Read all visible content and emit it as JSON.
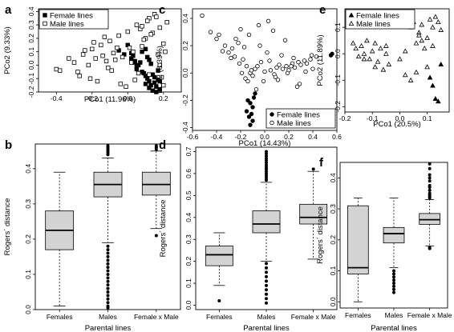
{
  "chart_data": [
    {
      "panel": "a",
      "type": "scatter",
      "xlabel": "PCo1 (11.96%)",
      "ylabel": "PCo2 (9.33%)",
      "xlim": [
        -0.5,
        0.3
      ],
      "ylim": [
        -0.2,
        0.42
      ],
      "xticks": [
        -0.4,
        -0.2,
        0.0,
        0.2
      ],
      "yticks": [
        -0.2,
        -0.1,
        0.0,
        0.1,
        0.2,
        0.3,
        0.4
      ],
      "xtick_labels": [
        "-0.4",
        "-0.2",
        "0.0",
        "0.2"
      ],
      "ytick_labels": [
        "-0.2",
        "-0.1",
        "0.0",
        "0.1",
        "0.2",
        "0.3",
        "0.4"
      ],
      "legend_position": "top-left",
      "series": [
        {
          "name": "Female lines",
          "marker": "filled-square",
          "x": [
            0.02,
            0.04,
            0.05,
            0.07,
            0.08,
            0.1,
            0.11,
            0.12,
            0.13,
            0.15,
            0.16,
            0.17,
            0.18,
            0.12,
            0.14,
            0.1,
            0.09,
            0.06,
            0.03,
            0.15,
            0.17,
            0.13,
            0.11,
            0.08,
            0.05,
            0.16,
            0.14,
            0.12,
            0.18,
            0.1,
            -0.02,
            -0.05,
            0.0,
            0.02,
            0.04
          ],
          "y": [
            0.05,
            0.03,
            -0.01,
            0.02,
            -0.05,
            -0.08,
            -0.1,
            -0.12,
            -0.15,
            -0.13,
            -0.16,
            -0.11,
            -0.18,
            -0.17,
            -0.19,
            -0.14,
            -0.06,
            0.0,
            0.07,
            -0.09,
            -0.04,
            0.01,
            0.06,
            0.1,
            -0.03,
            -0.2,
            -0.07,
            0.04,
            -0.12,
            0.12,
            0.08,
            0.11,
            0.15,
            0.09,
            0.02
          ]
        },
        {
          "name": "Male lines",
          "marker": "open-square",
          "x": [
            -0.4,
            -0.38,
            -0.3,
            -0.28,
            -0.25,
            -0.22,
            -0.2,
            -0.18,
            -0.15,
            -0.12,
            -0.1,
            -0.08,
            -0.05,
            -0.03,
            0.0,
            0.03,
            0.05,
            0.08,
            0.1,
            0.12,
            0.15,
            0.18,
            0.2,
            0.22,
            -0.27,
            -0.24,
            -0.21,
            -0.17,
            -0.14,
            -0.11,
            -0.07,
            -0.04,
            0.01,
            0.06,
            0.09,
            0.14,
            0.17,
            0.19,
            -0.33,
            -0.19,
            -0.13,
            -0.09,
            -0.06,
            0.02,
            0.07,
            0.11,
            0.16,
            0.21,
            0.04,
            -0.01,
            0.13,
            0.18,
            0.2,
            0.12,
            0.08
          ],
          "y": [
            -0.03,
            -0.04,
            0.02,
            -0.05,
            0.08,
            0.0,
            0.12,
            0.05,
            0.15,
            0.03,
            0.18,
            0.09,
            0.22,
            0.06,
            0.25,
            0.1,
            0.3,
            0.14,
            0.2,
            0.35,
            0.38,
            0.28,
            0.16,
            0.32,
            -0.08,
            0.11,
            -0.1,
            -0.12,
            0.07,
            -0.02,
            0.04,
            -0.14,
            0.13,
            -0.06,
            0.19,
            0.24,
            0.08,
            -0.09,
            0.05,
            0.17,
            0.21,
            -0.04,
            0.13,
            0.02,
            0.27,
            0.33,
            0.36,
            0.1,
            -0.11,
            -0.16,
            0.23,
            0.0,
            -0.15,
            -0.07,
            0.29
          ]
        }
      ]
    },
    {
      "panel": "b",
      "type": "boxplot",
      "xlabel": "Parental lines",
      "ylabel": "Rogers´ distance",
      "categories": [
        "Females",
        "Males",
        "Female x Male"
      ],
      "ylim": [
        0,
        0.47
      ],
      "yticks": [
        0.0,
        0.1,
        0.2,
        0.3,
        0.4
      ],
      "ytick_labels": [
        "0.0",
        "0.1",
        "0.2",
        "0.3",
        "0.4"
      ],
      "boxes": [
        {
          "whisker_low": 0.01,
          "q1": 0.17,
          "median": 0.225,
          "q3": 0.28,
          "whisker_high": 0.39,
          "outliers": []
        },
        {
          "whisker_low": 0.19,
          "q1": 0.32,
          "median": 0.355,
          "q3": 0.39,
          "whisker_high": 0.43,
          "outliers": [
            0.44,
            0.445,
            0.45,
            0.455,
            0.46,
            0.465,
            0.005,
            0.01,
            0.02,
            0.03,
            0.04,
            0.05,
            0.06,
            0.07,
            0.08,
            0.09,
            0.1,
            0.11,
            0.12,
            0.13,
            0.14,
            0.15,
            0.16,
            0.17,
            0.18
          ]
        },
        {
          "whisker_low": 0.23,
          "q1": 0.325,
          "median": 0.355,
          "q3": 0.39,
          "whisker_high": 0.45,
          "outliers": [
            0.455,
            0.46,
            0.465,
            0.21
          ]
        }
      ]
    },
    {
      "panel": "c",
      "type": "scatter",
      "xlabel": "PCo1 (14.43%)",
      "ylabel": "PCo2 (8.39%)",
      "xlim": [
        -0.6,
        0.6
      ],
      "ylim": [
        -0.42,
        0.47
      ],
      "xticks": [
        -0.6,
        -0.4,
        -0.2,
        0.0,
        0.2,
        0.4,
        0.6
      ],
      "yticks": [
        -0.4,
        -0.2,
        0.0,
        0.2,
        0.4
      ],
      "xtick_labels": [
        "-0.6",
        "-0.4",
        "-0.2",
        "0.0",
        "0.2",
        "0.4",
        "0.6"
      ],
      "ytick_labels": [
        "-0.4",
        "-0.2",
        "0.0",
        "0.2",
        "0.4"
      ],
      "legend_position": "bottom-right",
      "series": [
        {
          "name": "Female lines",
          "marker": "filled-circle",
          "x": [
            -0.14,
            -0.12,
            -0.1,
            -0.15,
            -0.11,
            -0.13,
            -0.09,
            -0.08,
            0.55,
            0.56,
            -0.1,
            -0.12
          ],
          "y": [
            -0.2,
            -0.22,
            -0.25,
            -0.28,
            -0.3,
            -0.32,
            -0.18,
            -0.15,
            0.13,
            0.14,
            -0.35,
            -0.38
          ]
        },
        {
          "name": "Male lines",
          "marker": "open-circle",
          "x": [
            -0.52,
            -0.45,
            -0.4,
            -0.38,
            -0.33,
            -0.3,
            -0.27,
            -0.25,
            -0.22,
            -0.2,
            -0.18,
            -0.15,
            -0.12,
            -0.1,
            -0.08,
            -0.05,
            -0.03,
            0.0,
            0.03,
            0.05,
            0.08,
            0.1,
            0.12,
            0.15,
            0.18,
            0.2,
            0.23,
            0.25,
            0.28,
            0.3,
            0.33,
            0.35,
            0.38,
            0.4,
            0.43,
            -0.35,
            -0.28,
            -0.21,
            -0.16,
            -0.11,
            -0.06,
            -0.01,
            0.04,
            0.09,
            0.14,
            0.19,
            0.24,
            0.29,
            0.34,
            0.39,
            -0.24,
            -0.17,
            -0.13,
            -0.07,
            0.02,
            0.07,
            0.11,
            0.17,
            0.22,
            0.27,
            -0.19,
            -0.14,
            -0.04
          ],
          "y": [
            0.42,
            0.3,
            0.25,
            0.28,
            0.2,
            0.15,
            0.18,
            0.12,
            0.22,
            0.32,
            0.1,
            0.05,
            0.0,
            -0.02,
            0.03,
            0.35,
            0.08,
            0.01,
            0.38,
            0.02,
            -0.01,
            0.04,
            0.06,
            0.03,
            0.05,
            0.02,
            0.07,
            0.04,
            0.08,
            0.06,
            0.09,
            0.07,
            0.1,
            0.03,
            0.12,
            0.16,
            0.11,
            0.07,
            -0.04,
            0.02,
            0.05,
            -0.06,
            0.09,
            -0.03,
            0.13,
            0.0,
            0.11,
            -0.08,
            0.01,
            0.13,
            0.25,
            0.19,
            0.28,
            -0.12,
            0.15,
            0.31,
            -0.05,
            0.24,
            0.05,
            -0.1,
            0.0,
            -0.06,
            0.2
          ]
        }
      ]
    },
    {
      "panel": "d",
      "type": "boxplot",
      "xlabel": "Parental lines",
      "ylabel": "Rogers´ distance",
      "categories": [
        "Females",
        "Males",
        "Female x Male"
      ],
      "ylim": [
        -0.02,
        0.72
      ],
      "yticks": [
        0.0,
        0.1,
        0.2,
        0.3,
        0.4,
        0.5,
        0.6,
        0.7
      ],
      "ytick_labels": [
        "0.0",
        "0.1",
        "0.2",
        "0.3",
        "0.4",
        "0.5",
        "0.6",
        "0.7"
      ],
      "boxes": [
        {
          "whisker_low": 0.09,
          "q1": 0.18,
          "median": 0.23,
          "q3": 0.27,
          "whisker_high": 0.33,
          "outliers": [
            0.02
          ]
        },
        {
          "whisker_low": 0.2,
          "q1": 0.33,
          "median": 0.37,
          "q3": 0.43,
          "whisker_high": 0.56,
          "outliers": [
            0.57,
            0.58,
            0.59,
            0.6,
            0.61,
            0.62,
            0.63,
            0.64,
            0.65,
            0.66,
            0.67,
            0.68,
            0.69,
            0.7,
            0.01,
            0.03,
            0.05,
            0.07,
            0.09,
            0.11,
            0.13,
            0.15,
            0.17,
            0.19
          ]
        },
        {
          "whisker_low": 0.21,
          "q1": 0.37,
          "median": 0.4,
          "q3": 0.46,
          "whisker_high": 0.61,
          "outliers": [
            0.62
          ]
        }
      ]
    },
    {
      "panel": "e",
      "type": "scatter",
      "xlabel": "PCo1 (20.5%)",
      "ylabel": "PCo2 (11.89%)",
      "xlim": [
        -0.2,
        0.18
      ],
      "ylim": [
        -0.22,
        0.17
      ],
      "xticks": [
        -0.2,
        -0.1,
        0.0,
        0.1
      ],
      "yticks": [
        -0.2,
        -0.1,
        0.0,
        0.1
      ],
      "xtick_labels": [
        "-0.2",
        "-0.1",
        "0.0",
        "0.1"
      ],
      "ytick_labels": [
        "-0.2",
        "-0.1",
        "0.0",
        "0.1"
      ],
      "legend_position": "top-left",
      "series": [
        {
          "name": "Female lines",
          "marker": "filled-triangle",
          "x": [
            0.12,
            0.13,
            0.14,
            0.11,
            0.15
          ],
          "y": [
            -0.12,
            -0.17,
            -0.18,
            -0.09,
            -0.04
          ]
        },
        {
          "name": "Male lines",
          "marker": "open-triangle",
          "x": [
            -0.17,
            -0.16,
            -0.15,
            -0.14,
            -0.13,
            -0.12,
            -0.11,
            -0.1,
            -0.09,
            -0.08,
            -0.07,
            -0.06,
            -0.05,
            -0.04,
            0.0,
            0.02,
            0.04,
            0.05,
            0.06,
            0.07,
            0.08,
            0.09,
            0.1,
            0.11,
            0.12,
            0.13,
            0.14,
            0.1,
            0.08,
            0.06,
            0.04,
            0.12,
            0.02,
            0.15,
            -0.13,
            -0.09,
            -0.05,
            0.07
          ],
          "y": [
            0.04,
            0.02,
            -0.01,
            0.03,
            0.0,
            0.05,
            -0.02,
            0.01,
            0.04,
            -0.03,
            0.02,
            -0.06,
            0.0,
            -0.04,
            -0.02,
            0.01,
            0.1,
            0.12,
            0.04,
            0.08,
            0.11,
            0.02,
            0.06,
            0.13,
            0.1,
            0.14,
            0.12,
            -0.05,
            0.05,
            -0.07,
            -0.1,
            0.03,
            -0.08,
            0.09,
            -0.02,
            -0.05,
            0.03,
            0.07
          ]
        }
      ]
    },
    {
      "panel": "f",
      "type": "boxplot",
      "xlabel": "Parental lines",
      "ylabel": "Rogers´ distance",
      "categories": [
        "Females",
        "Males",
        "Female x Male"
      ],
      "ylim": [
        -0.02,
        0.45
      ],
      "yticks": [
        0.0,
        0.1,
        0.2,
        0.3,
        0.4
      ],
      "ytick_labels": [
        "0.0",
        "0.1",
        "0.2",
        "0.3",
        "0.4"
      ],
      "boxes": [
        {
          "whisker_low": 0.0,
          "q1": 0.09,
          "median": 0.11,
          "q3": 0.31,
          "whisker_high": 0.335,
          "outliers": []
        },
        {
          "whisker_low": 0.11,
          "q1": 0.19,
          "median": 0.22,
          "q3": 0.24,
          "whisker_high": 0.335,
          "outliers": [
            0.03,
            0.04,
            0.05,
            0.06,
            0.07,
            0.08,
            0.09,
            0.1
          ]
        },
        {
          "whisker_low": 0.18,
          "q1": 0.25,
          "median": 0.265,
          "q3": 0.285,
          "whisker_high": 0.33,
          "outliers": [
            0.335,
            0.34,
            0.345,
            0.35,
            0.36,
            0.37,
            0.375,
            0.39,
            0.4,
            0.41,
            0.43,
            0.445,
            0.175,
            0.172
          ]
        }
      ]
    }
  ]
}
